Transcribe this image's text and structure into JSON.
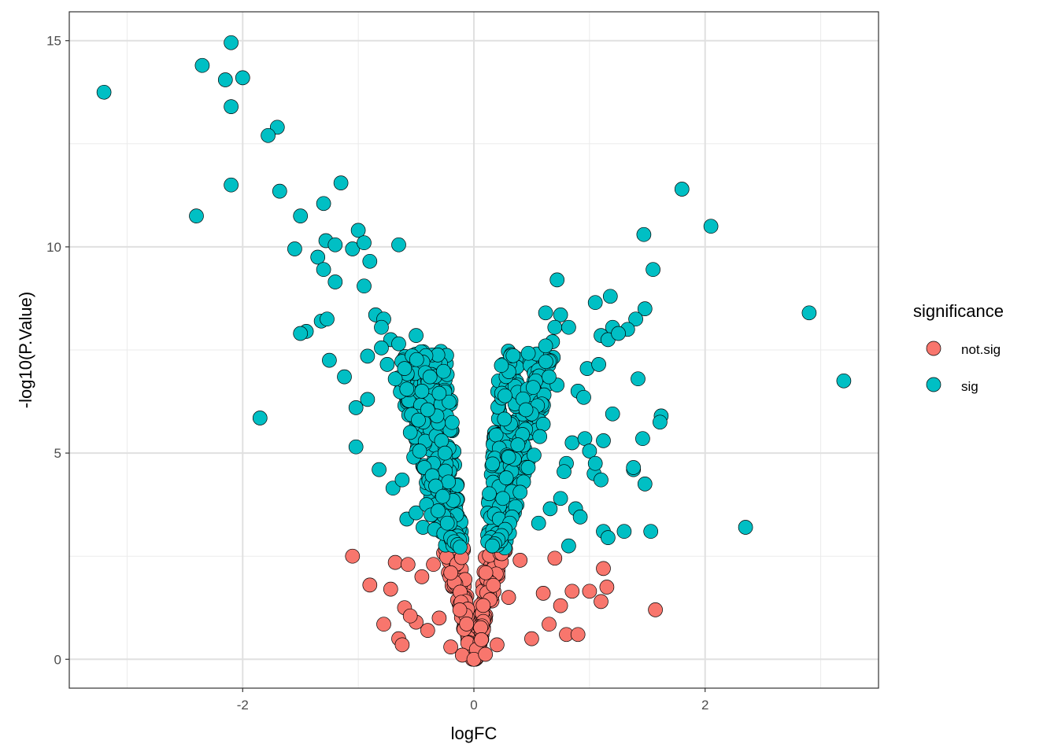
{
  "chart_data": {
    "type": "scatter",
    "title": "",
    "xlabel": "logFC",
    "ylabel": "-log10(P.Value)",
    "xlim": [
      -3.5,
      3.5
    ],
    "ylim": [
      -0.7,
      15.7
    ],
    "x_ticks": [
      -2,
      0,
      2
    ],
    "x_tick_labels": [
      "-2",
      "0",
      "2"
    ],
    "y_ticks": [
      0,
      5,
      10,
      15
    ],
    "y_tick_labels": [
      "0",
      "5",
      "10",
      "15"
    ],
    "grid": true,
    "significance_threshold": 2.7,
    "legend": {
      "title": "significance",
      "position": "right",
      "entries": [
        {
          "label": "not.sig",
          "color": "#F8766D"
        },
        {
          "label": "sig",
          "color": "#00BFC4"
        }
      ]
    },
    "series": [
      {
        "name": "not.sig",
        "color": "#F8766D",
        "x": [
          -1.05,
          -0.9,
          -0.78,
          -0.72,
          -0.68,
          -0.65,
          -0.62,
          -0.57,
          -0.5,
          -0.45,
          -0.4,
          -0.35,
          -0.3,
          -0.2,
          -0.1,
          0.0,
          0.1,
          0.2,
          0.3,
          0.4,
          0.5,
          0.6,
          0.7,
          0.75,
          0.8,
          0.85,
          0.9,
          1.0,
          1.1,
          1.12,
          1.15,
          1.57,
          -0.6,
          -0.55,
          0.65
        ],
        "y": [
          2.5,
          1.8,
          0.85,
          1.7,
          2.35,
          0.5,
          0.35,
          2.3,
          0.9,
          2.0,
          0.7,
          2.3,
          1.0,
          0.3,
          0.1,
          0.0,
          0.12,
          0.35,
          1.5,
          2.4,
          0.5,
          1.6,
          2.45,
          1.3,
          0.6,
          1.65,
          0.6,
          1.65,
          1.4,
          2.2,
          1.75,
          1.2,
          1.25,
          1.05,
          0.85
        ]
      },
      {
        "name": "sig",
        "color": "#00BFC4",
        "x": [
          -3.2,
          -2.1,
          -2.35,
          -2.15,
          -2.1,
          -2.0,
          -2.1,
          -1.7,
          -1.78,
          -1.68,
          -2.4,
          -1.15,
          -1.85,
          -1.5,
          -1.3,
          -1.55,
          -1.35,
          -1.28,
          -1.3,
          -1.2,
          -1.05,
          -1.0,
          -0.95,
          -0.9,
          -0.65,
          -1.2,
          -1.45,
          -1.5,
          -1.32,
          -1.27,
          -1.25,
          -0.85,
          -0.95,
          -1.12,
          -0.92,
          -1.02,
          -0.92,
          -1.02,
          -0.78,
          -0.72,
          -0.8,
          -0.75,
          -0.8,
          -0.5,
          -0.65,
          -0.82,
          -0.68,
          -0.6,
          -0.58,
          -0.45,
          -0.42,
          -0.38,
          -0.3,
          -0.28,
          -0.25,
          -0.22,
          -0.18,
          -0.35,
          -0.32,
          -0.55,
          -0.48,
          -0.4,
          -0.7,
          -0.62,
          -0.52,
          -0.47,
          -0.43,
          -0.36,
          -0.33,
          -0.27,
          -0.58,
          -0.5,
          -0.44,
          -0.41,
          -0.37,
          -0.34,
          -0.31,
          -0.26,
          -0.23,
          -0.2,
          -0.17,
          -0.14,
          -0.12,
          1.8,
          2.05,
          1.47,
          1.55,
          0.72,
          1.05,
          1.18,
          1.48,
          1.4,
          1.33,
          1.2,
          1.1,
          1.16,
          1.25,
          0.98,
          1.08,
          1.42,
          1.2,
          1.62,
          1.61,
          0.75,
          0.62,
          0.68,
          0.7,
          0.82,
          0.62,
          0.72,
          0.9,
          0.95,
          0.65,
          0.55,
          0.5,
          0.45,
          0.42,
          0.38,
          0.35,
          0.3,
          0.28,
          0.25,
          0.22,
          0.2,
          0.15,
          0.12,
          0.85,
          0.8,
          0.78,
          0.75,
          0.88,
          0.92,
          0.96,
          1.0,
          1.04,
          1.12,
          1.16,
          0.6,
          0.57,
          0.52,
          0.47,
          0.43,
          0.4,
          0.36,
          0.33,
          0.31,
          0.27,
          0.24,
          0.21,
          0.18,
          0.16,
          1.05,
          1.12,
          1.3,
          1.38,
          1.53,
          1.48,
          2.9,
          3.2,
          2.35,
          0.82,
          1.46,
          1.1,
          1.38,
          0.66,
          0.56
        ],
        "y": [
          13.75,
          14.95,
          14.4,
          14.05,
          13.4,
          14.1,
          11.5,
          12.9,
          12.7,
          11.35,
          10.75,
          11.55,
          5.85,
          10.75,
          11.05,
          9.95,
          9.75,
          10.15,
          9.45,
          10.05,
          9.95,
          10.4,
          10.1,
          9.65,
          10.05,
          9.15,
          7.95,
          7.9,
          8.2,
          8.25,
          7.25,
          8.35,
          9.05,
          6.85,
          7.35,
          6.1,
          6.3,
          5.15,
          8.25,
          7.75,
          8.05,
          7.15,
          7.55,
          7.85,
          7.65,
          4.6,
          6.8,
          7.05,
          6.55,
          6.5,
          6.95,
          6.85,
          6.45,
          5.3,
          5.0,
          4.3,
          3.85,
          4.75,
          5.9,
          5.5,
          5.8,
          6.05,
          4.15,
          4.35,
          4.9,
          5.05,
          4.65,
          4.45,
          4.2,
          3.95,
          3.4,
          3.55,
          3.2,
          3.75,
          3.5,
          3.15,
          3.6,
          3.05,
          3.3,
          2.95,
          2.85,
          2.78,
          2.72,
          11.4,
          10.5,
          10.3,
          9.45,
          9.2,
          8.65,
          8.8,
          8.5,
          8.25,
          8.0,
          8.05,
          7.85,
          7.75,
          7.9,
          7.05,
          7.15,
          6.8,
          5.95,
          5.9,
          5.75,
          8.35,
          8.4,
          7.7,
          8.05,
          8.05,
          7.6,
          6.65,
          6.5,
          6.35,
          6.85,
          6.15,
          5.95,
          6.05,
          5.45,
          5.2,
          4.85,
          4.9,
          4.4,
          3.9,
          3.4,
          3.05,
          2.95,
          2.85,
          5.25,
          4.75,
          4.55,
          3.9,
          3.65,
          3.45,
          5.35,
          5.05,
          4.5,
          3.1,
          2.95,
          5.7,
          5.4,
          4.95,
          4.65,
          4.3,
          4.05,
          3.7,
          3.45,
          3.3,
          3.15,
          3.0,
          2.9,
          2.8,
          2.75,
          4.75,
          5.3,
          3.1,
          4.6,
          3.1,
          4.25,
          8.4,
          6.75,
          3.2,
          2.75,
          5.35,
          4.35,
          4.65,
          3.65,
          3.3
        ]
      }
    ]
  }
}
